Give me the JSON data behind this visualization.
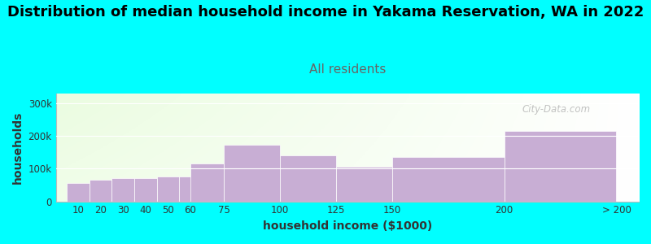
{
  "title": "Distribution of median household income in Yakama Reservation, WA in 2022",
  "subtitle": "All residents",
  "xlabel": "household income ($1000)",
  "ylabel": "households",
  "background_color": "#00FFFF",
  "bar_color": "#c8aed4",
  "bar_edge_color": "#c8aed4",
  "categories": [
    "10",
    "20",
    "30",
    "40",
    "50",
    "60",
    "75",
    "100",
    "125",
    "150",
    "200",
    "> 200"
  ],
  "widths": [
    10,
    10,
    10,
    10,
    10,
    10,
    15,
    25,
    25,
    25,
    50,
    50
  ],
  "lefts": [
    5,
    15,
    25,
    35,
    45,
    55,
    60,
    75,
    100,
    125,
    150,
    200
  ],
  "values": [
    55000,
    65000,
    70000,
    72000,
    75000,
    75000,
    117000,
    172000,
    140000,
    105000,
    137000,
    215000
  ],
  "ylim": [
    0,
    330000
  ],
  "yticks": [
    0,
    100000,
    200000,
    300000
  ],
  "ytick_labels": [
    "0",
    "100k",
    "200k",
    "300k"
  ],
  "xtick_positions": [
    10,
    20,
    30,
    40,
    50,
    60,
    75,
    100,
    125,
    150,
    200,
    250
  ],
  "xtick_labels": [
    "10",
    "20",
    "30",
    "40",
    "50",
    "60",
    "75",
    "100",
    "125",
    "150",
    "200",
    "> 200"
  ],
  "title_fontsize": 13,
  "subtitle_fontsize": 11,
  "subtitle_color": "#666666",
  "watermark": "City-Data.com",
  "watermark_color": "#aaaaaa"
}
